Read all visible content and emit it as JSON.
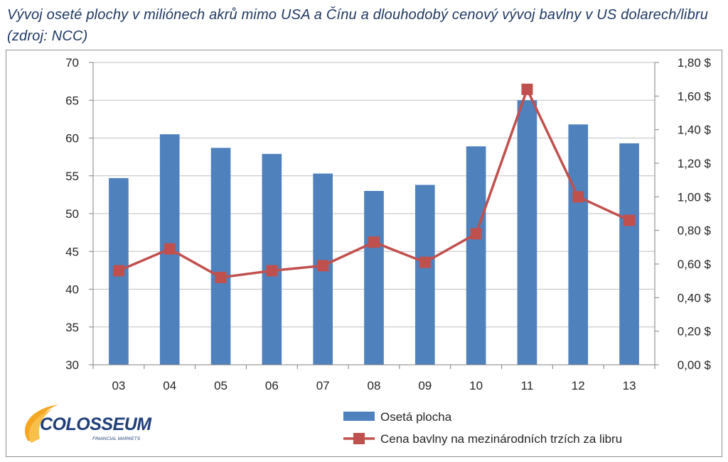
{
  "title": "Vývoj oseté plochy v miliónech akrů mimo USA a Čínu a dlouhodobý cenový vývoj bavlny v US dolarech/libru (zdroj: NCC)",
  "logo": {
    "name": "COLOSSEUM",
    "tagline": "FINANCIAL MARKETS"
  },
  "colors": {
    "bar": "#4f81bd",
    "line": "#c0504d",
    "title": "#1f3864",
    "grid": "#bfbfbf"
  },
  "chart_data": {
    "type": "bar",
    "categories": [
      "03",
      "04",
      "05",
      "06",
      "07",
      "08",
      "09",
      "10",
      "11",
      "12",
      "13"
    ],
    "series": [
      {
        "name": "Osetá plocha",
        "type": "bar",
        "axis": "left",
        "values": [
          54.7,
          60.5,
          58.7,
          57.9,
          55.3,
          53.0,
          53.8,
          58.9,
          65.0,
          61.8,
          59.3
        ]
      },
      {
        "name": "Cena bavlny na mezinárodních trzích za libru",
        "type": "line",
        "axis": "right",
        "values": [
          0.56,
          0.69,
          0.52,
          0.56,
          0.59,
          0.73,
          0.61,
          0.78,
          1.64,
          1.0,
          0.86
        ]
      }
    ],
    "y_left": {
      "min": 30,
      "max": 70,
      "step": 5,
      "tick_labels": [
        "30",
        "35",
        "40",
        "45",
        "50",
        "55",
        "60",
        "65",
        "70"
      ]
    },
    "y_right": {
      "min": 0,
      "max": 1.8,
      "step": 0.2,
      "tick_labels": [
        "0,00 $",
        "0,20 $",
        "0,40 $",
        "0,60 $",
        "0,80 $",
        "1,00 $",
        "1,20 $",
        "1,40 $",
        "1,60 $",
        "1,80 $"
      ]
    },
    "grid": true,
    "legend_position": "bottom",
    "xlabel": "",
    "ylabel": ""
  }
}
